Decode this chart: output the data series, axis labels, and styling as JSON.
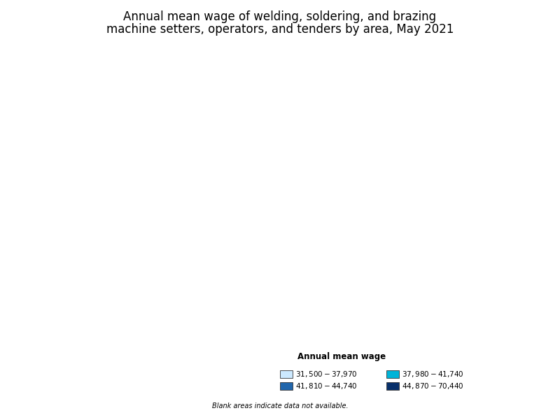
{
  "title_line1": "Annual mean wage of welding, soldering, and brazing",
  "title_line2": "machine setters, operators, and tenders by area, May 2021",
  "title_fontsize": 12,
  "legend_title": "Annual mean wage",
  "legend_title_fontsize": 8.5,
  "legend_fontsize": 7.5,
  "legend_categories": [
    "$31,500 - $37,970",
    "$37,980 - $41,740",
    "$41,810 - $44,740",
    "$44,870 - $70,440"
  ],
  "legend_colors": [
    "#cce9ff",
    "#00b4d8",
    "#2166ac",
    "#08306b"
  ],
  "blank_note": "Blank areas indicate data not available.",
  "background_color": "#ffffff",
  "figsize": [
    8.0,
    6.0
  ],
  "dpi": 100
}
